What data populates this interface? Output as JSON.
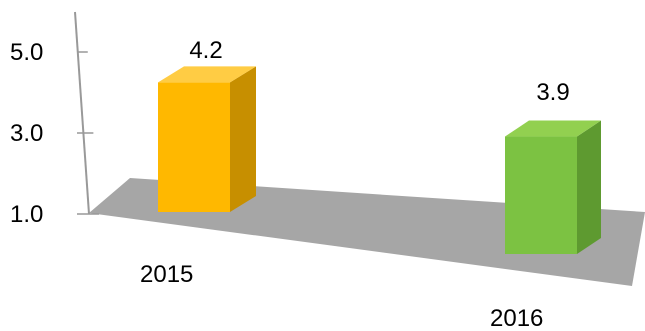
{
  "chart_data": {
    "type": "bar",
    "categories": [
      "2015",
      "2016"
    ],
    "values": [
      4.2,
      3.9
    ],
    "data_labels": [
      "4.2",
      "3.9"
    ],
    "y_ticks": [
      {
        "value": 1.0,
        "label": "1.0"
      },
      {
        "value": 3.0,
        "label": "3.0"
      },
      {
        "value": 5.0,
        "label": "5.0"
      }
    ],
    "ylim": [
      1.0,
      5.0
    ],
    "title": "",
    "xlabel": "",
    "ylabel": "",
    "grid": false,
    "legend": "none",
    "three_d": true,
    "colors": {
      "bars": [
        "#FFB800",
        "#7CC242"
      ],
      "bar_tops": [
        "#FFCC44",
        "#92D050"
      ],
      "bar_sides": [
        "#C78F00",
        "#5E9A30"
      ],
      "floor": "#A6A6A6",
      "axis": "#999999"
    }
  }
}
